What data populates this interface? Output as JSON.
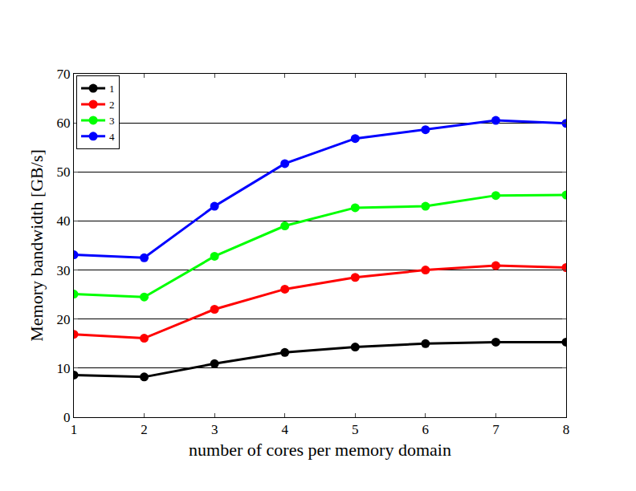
{
  "chart_data": {
    "type": "line",
    "x_label": "number of cores per memory domain",
    "y_label": "Memory bandwidth [GB/s]",
    "x": [
      1,
      2,
      3,
      4,
      5,
      6,
      7,
      8
    ],
    "series": [
      {
        "name": "1",
        "color": "#000000",
        "values": [
          8.6,
          8.2,
          10.9,
          13.2,
          14.3,
          15.0,
          15.3,
          15.3
        ]
      },
      {
        "name": "2",
        "color": "#ff0000",
        "values": [
          16.9,
          16.1,
          22.0,
          26.1,
          28.5,
          30.0,
          30.9,
          30.5
        ]
      },
      {
        "name": "3",
        "color": "#00ff00",
        "values": [
          25.1,
          24.5,
          32.8,
          39.0,
          42.7,
          43.0,
          45.2,
          45.3
        ]
      },
      {
        "name": "4",
        "color": "#0000ff",
        "values": [
          33.1,
          32.5,
          43.0,
          51.7,
          56.8,
          58.6,
          60.5,
          59.9
        ]
      }
    ],
    "xlim": [
      1,
      8
    ],
    "xticks": [
      1,
      2,
      3,
      4,
      5,
      6,
      7,
      8
    ],
    "ylim": [
      0,
      70
    ],
    "yticks": [
      0,
      10,
      20,
      30,
      40,
      50,
      60,
      70
    ],
    "grid": true,
    "legend": "upper left",
    "marker": "circle",
    "line_style": "solid"
  }
}
